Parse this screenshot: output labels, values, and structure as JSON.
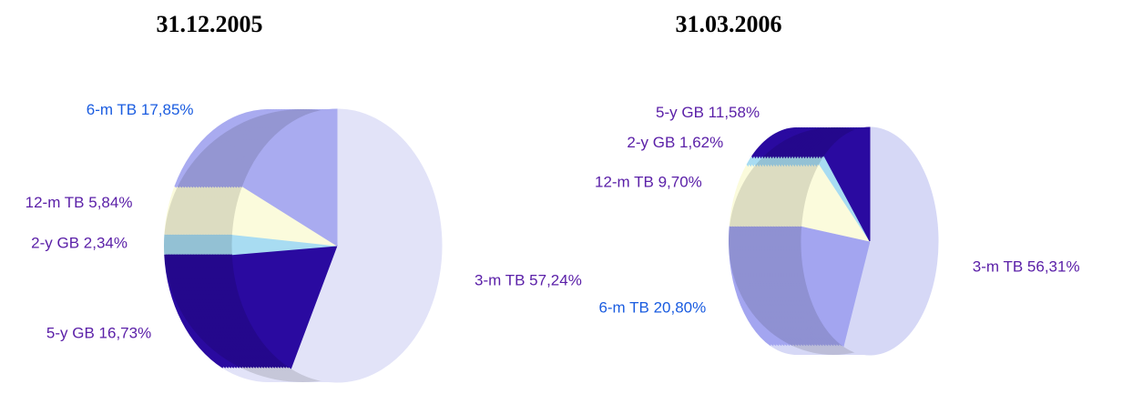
{
  "chart_data": [
    {
      "type": "pie",
      "title": "31.12.2005",
      "categories": [
        "3-m TB",
        "5-y GB",
        "2-y GB",
        "12-m TB",
        "6-m TB"
      ],
      "values": [
        57.24,
        16.73,
        2.34,
        5.84,
        17.85
      ],
      "value_labels": [
        "57,24%",
        "16,73%",
        "2,34%",
        "5,84%",
        "17,85%"
      ],
      "colors": [
        "#e2e3f8",
        "#2a0aa0",
        "#a8dcf2",
        "#fbfbdc",
        "#a9abf0"
      ],
      "label_colors": [
        "#5b20a8",
        "#5b20a8",
        "#5b20a8",
        "#5b20a8",
        "#1a5ce0"
      ]
    },
    {
      "type": "pie",
      "title": "31.03.2006",
      "categories": [
        "3-m TB",
        "6-m TB",
        "12-m TB",
        "2-y GB",
        "5-y GB"
      ],
      "values": [
        56.31,
        20.8,
        9.7,
        1.62,
        11.58
      ],
      "value_labels": [
        "56,31%",
        "20,80%",
        "9,70%",
        "1,62%",
        "11,58%"
      ],
      "colors": [
        "#d6d8f6",
        "#a3a5f0",
        "#fbfbdc",
        "#a8dcf2",
        "#2a0aa0"
      ],
      "label_colors": [
        "#5b20a8",
        "#1a5ce0",
        "#5b20a8",
        "#5b20a8",
        "#5b20a8"
      ]
    }
  ]
}
